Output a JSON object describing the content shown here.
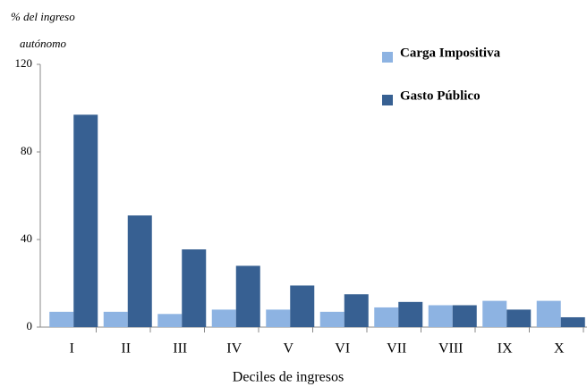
{
  "chart_data": {
    "type": "bar",
    "ylabel": [
      "% del ingreso",
      "autónomo"
    ],
    "xlabel": "Deciles de ingresos",
    "categories": [
      "I",
      "II",
      "III",
      "IV",
      "V",
      "VI",
      "VII",
      "VIII",
      "IX",
      "X"
    ],
    "series": [
      {
        "name": "Carga Impositiva",
        "color": "#8db3e2",
        "values": [
          7,
          7,
          6,
          8,
          8,
          7,
          9,
          10,
          12,
          12
        ]
      },
      {
        "name": "Gasto Público",
        "color": "#376092",
        "values": [
          97,
          51,
          35.5,
          28,
          19,
          15,
          11.5,
          10,
          8,
          4.5
        ]
      }
    ],
    "ylim": [
      0,
      120
    ],
    "yticks": [
      0,
      40,
      80,
      120
    ],
    "grid": false,
    "legend": "top-right"
  }
}
